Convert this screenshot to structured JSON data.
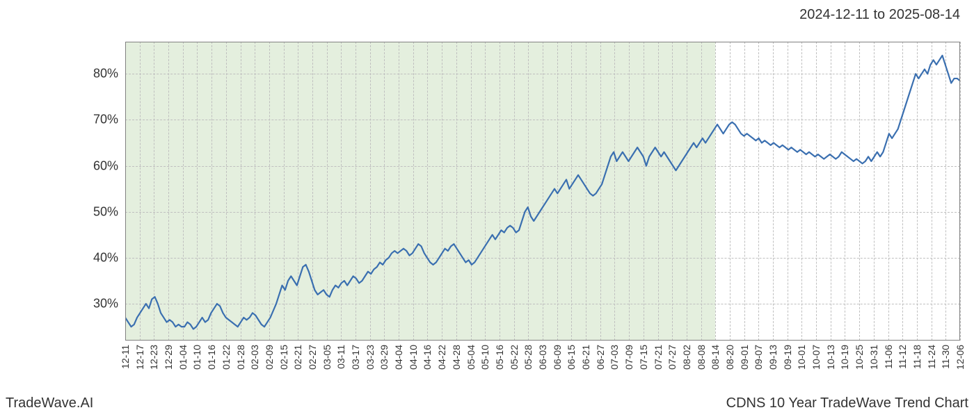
{
  "header": {
    "date_range": "2024-12-11 to 2025-08-14"
  },
  "footer": {
    "left": "TradeWave.AI",
    "right": "CDNS 10 Year TradeWave Trend Chart"
  },
  "chart": {
    "type": "line",
    "yaxis": {
      "min": 22,
      "max": 87,
      "ticks": [
        30,
        40,
        50,
        60,
        70,
        80
      ],
      "tick_labels": [
        "30%",
        "40%",
        "50%",
        "60%",
        "70%",
        "80%"
      ],
      "label_fontsize": 18,
      "label_color": "#333333"
    },
    "xaxis": {
      "tick_labels": [
        "12-11",
        "12-17",
        "12-23",
        "12-29",
        "01-04",
        "01-10",
        "01-16",
        "01-22",
        "01-28",
        "02-03",
        "02-09",
        "02-15",
        "02-21",
        "02-27",
        "03-05",
        "03-11",
        "03-17",
        "03-23",
        "03-29",
        "04-04",
        "04-10",
        "04-16",
        "04-22",
        "04-28",
        "05-04",
        "05-10",
        "05-16",
        "05-22",
        "05-28",
        "06-03",
        "06-09",
        "06-15",
        "06-21",
        "06-27",
        "07-03",
        "07-09",
        "07-15",
        "07-21",
        "07-27",
        "08-02",
        "08-08",
        "08-14",
        "08-20",
        "09-01",
        "09-07",
        "09-13",
        "09-19",
        "10-01",
        "10-07",
        "10-13",
        "10-19",
        "10-25",
        "10-31",
        "11-06",
        "11-12",
        "11-18",
        "11-24",
        "11-30",
        "12-06"
      ],
      "label_fontsize": 14,
      "label_color": "#333333",
      "rotation": -90
    },
    "highlight": {
      "start_idx": 0,
      "end_idx": 41,
      "color": "#dbe9d3",
      "opacity": 0.75
    },
    "series": {
      "color": "#3a6fb0",
      "line_width": 2.2,
      "values": [
        27,
        26,
        25,
        25.5,
        27,
        28,
        29,
        30,
        29,
        31,
        31.5,
        30,
        28,
        27,
        26,
        26.5,
        26,
        25,
        25.5,
        25,
        25,
        26,
        25.5,
        24.5,
        25,
        26,
        27,
        26,
        26.5,
        28,
        29,
        30,
        29.5,
        28,
        27,
        26.5,
        26,
        25.5,
        25,
        26,
        27,
        26.5,
        27,
        28,
        27.5,
        26.5,
        25.5,
        25,
        26,
        27,
        28.5,
        30,
        32,
        34,
        33,
        35,
        36,
        35,
        34,
        36,
        38,
        38.5,
        37,
        35,
        33,
        32,
        32.5,
        33,
        32,
        31.5,
        33,
        34,
        33.5,
        34.5,
        35,
        34,
        35,
        36,
        35.5,
        34.5,
        35,
        36,
        37,
        36.5,
        37.5,
        38,
        39,
        38.5,
        39.5,
        40,
        41,
        41.5,
        41,
        41.5,
        42,
        41.5,
        40.5,
        41,
        42,
        43,
        42.5,
        41,
        40,
        39,
        38.5,
        39,
        40,
        41,
        42,
        41.5,
        42.5,
        43,
        42,
        41,
        40,
        39,
        39.5,
        38.5,
        39,
        40,
        41,
        42,
        43,
        44,
        45,
        44,
        45,
        46,
        45.5,
        46.5,
        47,
        46.5,
        45.5,
        46,
        48,
        50,
        51,
        49,
        48,
        49,
        50,
        51,
        52,
        53,
        54,
        55,
        54,
        55,
        56,
        57,
        55,
        56,
        57,
        58,
        57,
        56,
        55,
        54,
        53.5,
        54,
        55,
        56,
        58,
        60,
        62,
        63,
        61,
        62,
        63,
        62,
        61,
        62,
        63,
        64,
        63,
        62,
        60,
        62,
        63,
        64,
        63,
        62,
        63,
        62,
        61,
        60,
        59,
        60,
        61,
        62,
        63,
        64,
        65,
        64,
        65,
        66,
        65,
        66,
        67,
        68,
        69,
        68,
        67,
        68,
        69,
        69.5,
        69,
        68,
        67,
        66.5,
        67,
        66.5,
        66,
        65.5,
        66,
        65,
        65.5,
        65,
        64.5,
        65,
        64.5,
        64,
        64.5,
        64,
        63.5,
        64,
        63.5,
        63,
        63.5,
        63,
        62.5,
        63,
        62.5,
        62,
        62.5,
        62,
        61.5,
        62,
        62.5,
        62,
        61.5,
        62,
        63,
        62.5,
        62,
        61.5,
        61,
        61.5,
        61,
        60.5,
        61,
        62,
        61,
        62,
        63,
        62,
        63,
        65,
        67,
        66,
        67,
        68,
        70,
        72,
        74,
        76,
        78,
        80,
        79,
        80,
        81,
        80,
        82,
        83,
        82,
        83,
        84,
        82,
        80,
        78,
        79,
        79,
        78.5
      ]
    },
    "grid": {
      "color": "#bfbfbf",
      "style": "dashed"
    },
    "border_color": "#808080",
    "background_color": "#ffffff"
  }
}
